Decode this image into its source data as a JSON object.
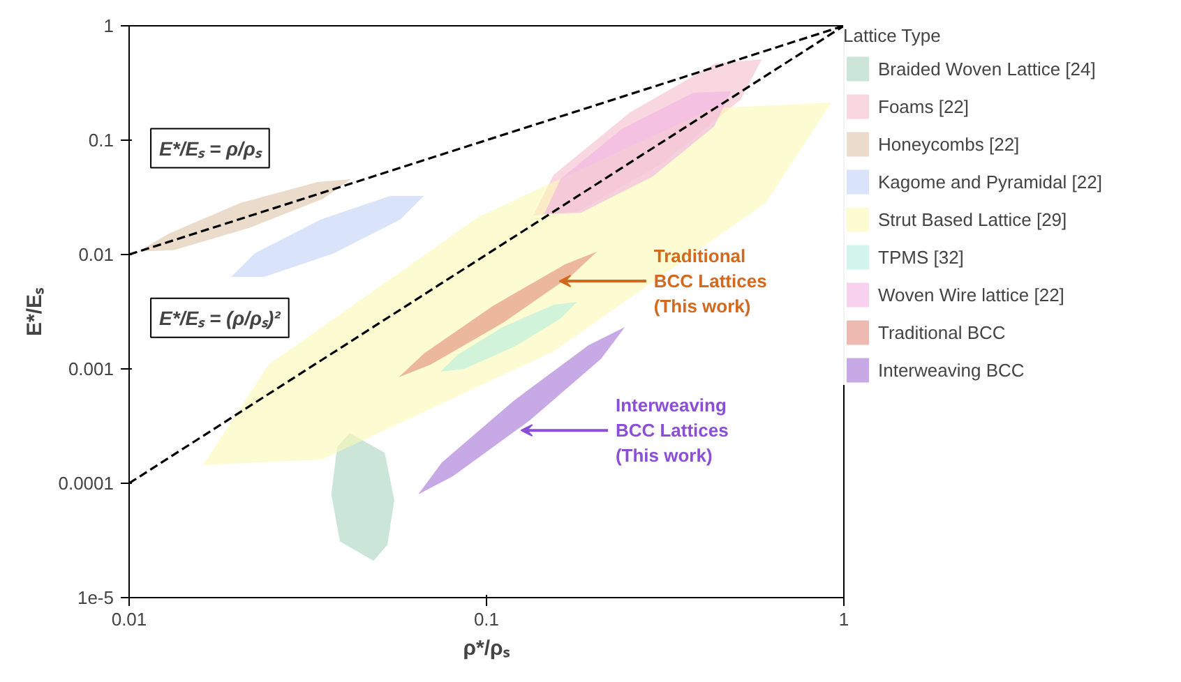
{
  "chart_data": {
    "type": "area",
    "xlabel": "ρ*/ρₛ",
    "ylabel": "E*/Eₛ",
    "legend_title": "Lattice Type",
    "legend": "right",
    "grid": false,
    "log": "xy",
    "xlim": [
      0.01,
      1
    ],
    "xticks": [
      0.01,
      0.1,
      1
    ],
    "ylim": [
      1e-05,
      1
    ],
    "yticks": [
      {
        "value": 1e-05,
        "label": "1e-5"
      },
      0.0001,
      0.001,
      0.01,
      0.1,
      1
    ],
    "series": [
      {
        "name": "Braided Woven Lattice [24]",
        "color": "#a9d3c0",
        "x": [
          0.0414,
          0.0519,
          0.0552,
          0.0528,
          0.0483,
          0.0389,
          0.0368,
          0.0382
        ],
        "values": [
          0.000275,
          0.000185,
          7.1e-05,
          2.9e-05,
          2.1e-05,
          3.1e-05,
          8e-05,
          0.000207
        ]
      },
      {
        "name": "Foams [22]",
        "color": "#f5bccb",
        "x": [
          0.589,
          0.514,
          0.313,
          0.181,
          0.135,
          0.154,
          0.252,
          0.437
        ],
        "values": [
          0.509,
          0.226,
          0.0638,
          0.0239,
          0.0219,
          0.0495,
          0.175,
          0.469
        ]
      },
      {
        "name": "Honeycombs [22]",
        "color": "#dcc3a8",
        "x": [
          0.0418,
          0.0349,
          0.0217,
          0.0133,
          0.0106,
          0.0129,
          0.0205,
          0.0337
        ],
        "values": [
          0.0456,
          0.0308,
          0.0171,
          0.0109,
          0.0106,
          0.0152,
          0.0283,
          0.0431
        ]
      },
      {
        "name": "Kagome and Pyramidal [22]",
        "color": "#bfd1f7",
        "x": [
          0.0668,
          0.0573,
          0.0375,
          0.0239,
          0.0193,
          0.0225,
          0.0343,
          0.0537
        ],
        "values": [
          0.0325,
          0.0202,
          0.0103,
          0.00638,
          0.00638,
          0.0103,
          0.0202,
          0.0325
        ]
      },
      {
        "name": "Strut Based Lattice [29]",
        "color": "#fcf8b4",
        "x": [
          0.922,
          0.604,
          0.155,
          0.0346,
          0.0161,
          0.0246,
          0.0948,
          0.43
        ],
        "values": [
          0.213,
          0.0283,
          0.00144,
          0.000161,
          0.000144,
          0.00109,
          0.0213,
          0.191
        ]
      },
      {
        "name": "TPMS [32]",
        "color": "#b3eedf",
        "x": [
          0.179,
          0.161,
          0.12,
          0.0866,
          0.0743,
          0.0828,
          0.111,
          0.154
        ],
        "values": [
          0.00385,
          0.00275,
          0.00157,
          0.001,
          0.000946,
          0.00132,
          0.00232,
          0.00364
        ]
      },
      {
        "name": "Woven Wire lattice [22]",
        "color": "#f2b3e2",
        "x": [
          0.483,
          0.434,
          0.292,
          0.184,
          0.145,
          0.161,
          0.239,
          0.379
        ],
        "values": [
          0.267,
          0.132,
          0.0482,
          0.0232,
          0.0226,
          0.0456,
          0.125,
          0.26
        ]
      },
      {
        "name": "Traditional BCC",
        "color": "#e08c7c",
        "x": [
          0.204,
          0.173,
          0.111,
          0.0698,
          0.0568,
          0.0668,
          0.104,
          0.166
        ],
        "values": [
          0.0106,
          0.00656,
          0.00252,
          0.00109,
          0.000845,
          0.00136,
          0.00354,
          0.00822
        ]
      },
      {
        "name": "Interweaving BCC",
        "color": "#a06fd4",
        "x": [
          0.244,
          0.209,
          0.132,
          0.0805,
          0.0644,
          0.075,
          0.119,
          0.193
        ],
        "values": [
          0.00232,
          0.00122,
          0.000354,
          0.000115,
          7.98e-05,
          0.000152,
          0.000525,
          0.00161
        ]
      },
      {
        "type": "line",
        "color": "#000000",
        "line_style": "dashed",
        "x": [
          0.01,
          1
        ],
        "values": [
          0.01,
          1
        ]
      },
      {
        "type": "line",
        "color": "#000000",
        "line_style": "dashed",
        "x": [
          0.01,
          1
        ],
        "values": [
          0.0001,
          1
        ]
      }
    ],
    "annotations": [
      "E*/Eₛ = ρ/ρₛ",
      "E*/Eₛ = (ρ/ρₛ)²",
      {
        "text": "Traditional\nBCC Lattices\n(This work)",
        "x": 0.16,
        "y": 0.00586
      },
      {
        "text": "Interweaving\nBCC Lattices\n(This work)",
        "x": 0.125,
        "y": 0.00029
      }
    ]
  }
}
